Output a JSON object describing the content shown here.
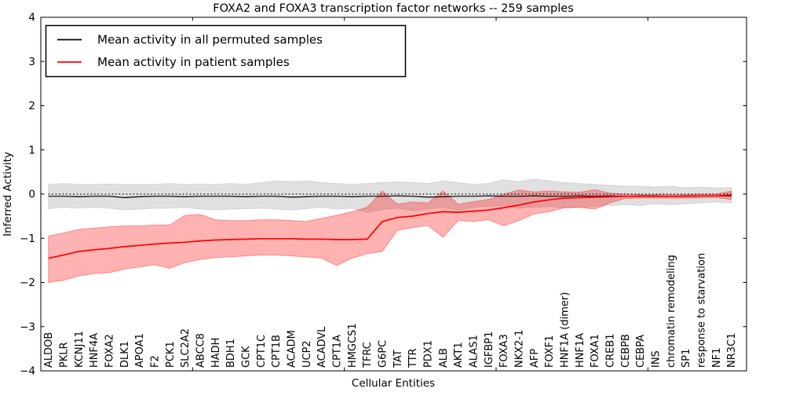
{
  "figure": {
    "title": "FOXA2 and FOXA3 transcription factor networks -- 259 samples",
    "xlabel": "Cellular Entities",
    "ylabel": "Inferred Activity"
  },
  "legend": {
    "position": "upper left",
    "entries": [
      {
        "label": "Mean activity in all permuted samples",
        "color": "#000000"
      },
      {
        "label": "Mean activity in patient samples",
        "color": "#ff0000"
      }
    ]
  },
  "chart_data": {
    "type": "line",
    "title": "FOXA2 and FOXA3 transcription factor networks -- 259 samples",
    "xlabel": "Cellular Entities",
    "ylabel": "Inferred Activity",
    "ylim": [
      -4,
      4
    ],
    "xlim": [
      0,
      46.5
    ],
    "grid": false,
    "legend_position": "upper left",
    "yticks": [
      {
        "value": -4,
        "label": "−4"
      },
      {
        "value": -3,
        "label": "−3"
      },
      {
        "value": -2,
        "label": "−2"
      },
      {
        "value": -1,
        "label": "−1"
      },
      {
        "value": 0,
        "label": "0"
      },
      {
        "value": 1,
        "label": "1"
      },
      {
        "value": 2,
        "label": "2"
      },
      {
        "value": 3,
        "label": "3"
      },
      {
        "value": 4,
        "label": "4"
      }
    ],
    "frame_xticks": [
      10,
      20,
      30,
      40
    ],
    "reference_line": {
      "y": 0,
      "style": "dotted",
      "color": "#000000"
    },
    "categories": [
      "ALDOB",
      "PKLR",
      "KCNJ11",
      "HNF4A",
      "FOXA2",
      "DLK1",
      "APOA1",
      "F2",
      "PCK1",
      "SLC2A2",
      "ABCC8",
      "HADH",
      "BDH1",
      "GCK",
      "CPT1C",
      "CPT1B",
      "ACADM",
      "UCP2",
      "ACADVL",
      "CPT1A",
      "HMGCS1",
      "TFRC",
      "G6PC",
      "TAT",
      "TTR",
      "PDX1",
      "ALB",
      "AKT1",
      "ALAS1",
      "IGFBP1",
      "FOXA3",
      "NKX2-1",
      "AFP",
      "FOXF1",
      "HNF1A (dimer)",
      "HNF1A",
      "FOXA1",
      "CREB1",
      "CEBPB",
      "CEBPA",
      "INS",
      "chromatin remodeling",
      "SP1",
      "response to starvation",
      "NF1",
      "NR3C1"
    ],
    "series": [
      {
        "name": "Mean activity in all permuted samples",
        "color": "#000000",
        "line_width": 1.2,
        "values": [
          -0.05,
          -0.05,
          -0.06,
          -0.05,
          -0.05,
          -0.08,
          -0.06,
          -0.05,
          -0.05,
          -0.06,
          -0.05,
          -0.05,
          -0.05,
          -0.06,
          -0.05,
          -0.05,
          -0.07,
          -0.06,
          -0.05,
          -0.05,
          -0.06,
          -0.05,
          -0.05,
          -0.04,
          -0.05,
          -0.07,
          -0.06,
          -0.05,
          -0.05,
          -0.04,
          -0.05,
          -0.05,
          -0.04,
          -0.05,
          -0.05,
          -0.04,
          -0.05,
          -0.04,
          -0.05,
          -0.04,
          -0.04,
          -0.05,
          -0.04,
          -0.04,
          -0.04,
          -0.04
        ]
      },
      {
        "name": "Mean activity in patient samples",
        "color": "#ff0000",
        "line_width": 1.7,
        "values": [
          -1.45,
          -1.38,
          -1.3,
          -1.26,
          -1.23,
          -1.19,
          -1.16,
          -1.13,
          -1.11,
          -1.09,
          -1.06,
          -1.04,
          -1.03,
          -1.02,
          -1.01,
          -1.01,
          -1.01,
          -1.02,
          -1.02,
          -1.03,
          -1.03,
          -1.02,
          -0.62,
          -0.53,
          -0.5,
          -0.44,
          -0.4,
          -0.41,
          -0.39,
          -0.36,
          -0.31,
          -0.25,
          -0.18,
          -0.13,
          -0.09,
          -0.08,
          -0.07,
          -0.06,
          -0.05,
          -0.05,
          -0.05,
          -0.05,
          -0.05,
          -0.04,
          -0.04,
          -0.02
        ]
      }
    ],
    "bands": [
      {
        "name": "permuted-envelope",
        "fill": "rgba(0,0,0,0.12)",
        "edge": "rgba(0,0,0,0.10)",
        "upper": [
          0.22,
          0.24,
          0.22,
          0.22,
          0.23,
          0.22,
          0.22,
          0.22,
          0.24,
          0.22,
          0.23,
          0.22,
          0.24,
          0.22,
          0.26,
          0.3,
          0.28,
          0.3,
          0.26,
          0.24,
          0.22,
          0.24,
          0.26,
          0.28,
          0.26,
          0.24,
          0.3,
          0.26,
          0.22,
          0.24,
          0.32,
          0.28,
          0.34,
          0.3,
          0.26,
          0.24,
          0.22,
          0.2,
          0.18,
          0.18,
          0.16,
          0.18,
          0.14,
          0.16,
          0.14,
          0.15
        ],
        "lower": [
          -0.33,
          -0.3,
          -0.32,
          -0.3,
          -0.32,
          -0.36,
          -0.34,
          -0.32,
          -0.32,
          -0.3,
          -0.34,
          -0.36,
          -0.34,
          -0.33,
          -0.32,
          -0.34,
          -0.36,
          -0.33,
          -0.3,
          -0.34,
          -0.32,
          -0.42,
          -0.35,
          -0.32,
          -0.38,
          -0.34,
          -0.3,
          -0.36,
          -0.3,
          -0.28,
          -0.26,
          -0.32,
          -0.3,
          -0.28,
          -0.32,
          -0.3,
          -0.28,
          -0.26,
          -0.24,
          -0.26,
          -0.22,
          -0.24,
          -0.22,
          -0.2,
          -0.18,
          -0.2
        ]
      },
      {
        "name": "patient-envelope",
        "fill": "rgba(255,0,0,0.30)",
        "edge": "rgba(255,0,0,0.35)",
        "upper": [
          -0.95,
          -0.88,
          -0.8,
          -0.77,
          -0.74,
          -0.72,
          -0.72,
          -0.7,
          -0.7,
          -0.48,
          -0.46,
          -0.58,
          -0.6,
          -0.6,
          -0.58,
          -0.58,
          -0.6,
          -0.62,
          -0.55,
          -0.48,
          -0.4,
          -0.3,
          0.07,
          -0.23,
          -0.18,
          -0.2,
          0.07,
          -0.23,
          -0.17,
          -0.12,
          0.0,
          0.09,
          0.05,
          0.07,
          0.05,
          0.04,
          0.1,
          0.02,
          0.0,
          -0.01,
          -0.01,
          -0.01,
          -0.01,
          0.0,
          0.0,
          0.07
        ],
        "lower": [
          -2.0,
          -1.95,
          -1.85,
          -1.8,
          -1.78,
          -1.7,
          -1.65,
          -1.6,
          -1.68,
          -1.55,
          -1.48,
          -1.44,
          -1.42,
          -1.4,
          -1.38,
          -1.38,
          -1.4,
          -1.42,
          -1.45,
          -1.62,
          -1.45,
          -1.35,
          -1.3,
          -0.82,
          -0.76,
          -0.71,
          -0.98,
          -0.6,
          -0.62,
          -0.58,
          -0.72,
          -0.6,
          -0.45,
          -0.4,
          -0.31,
          -0.3,
          -0.34,
          -0.2,
          -0.1,
          -0.09,
          -0.09,
          -0.09,
          -0.09,
          -0.08,
          -0.08,
          -0.12
        ]
      }
    ]
  }
}
